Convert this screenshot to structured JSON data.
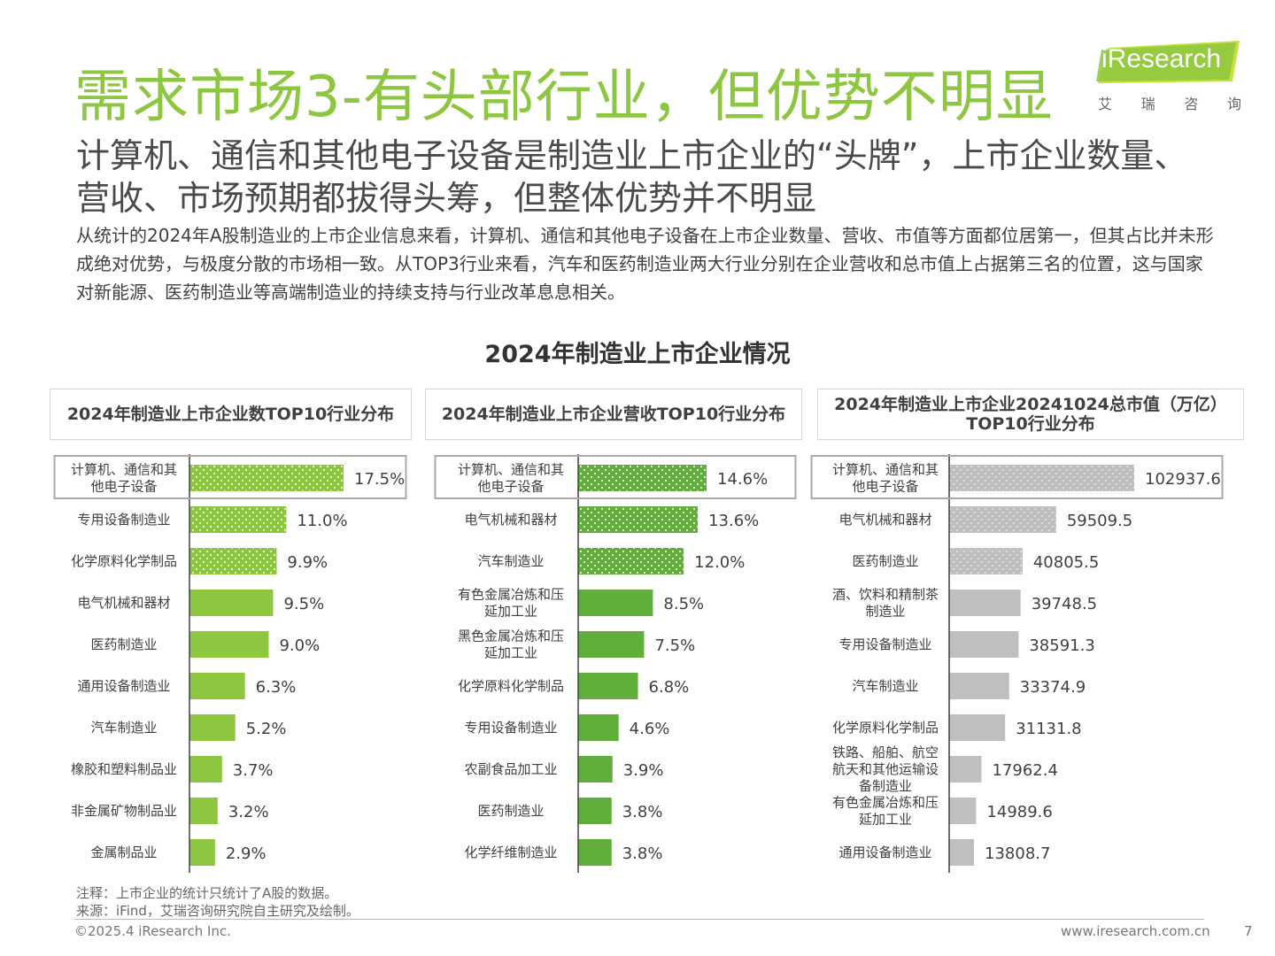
{
  "header": {
    "title": "需求市场3-有头部行业，但优势不明显",
    "subtitle": "计算机、通信和其他电子设备是制造业上市企业的“头牌”，上市企业数量、营收、市场预期都拔得头筹，但整体优势并不明显",
    "description": "从统计的2024年A股制造业的上市企业信息来看，计算机、通信和其他电子设备在上市企业数量、营收、市值等方面都位居第一，但其占比并未形成绝对优势，与极度分散的市场相一致。从TOP3行业来看，汽车和医药制造业两大行业分别在企业营收和总市值上占据第三名的位置，这与国家对新能源、医药制造业等高端制造业的持续支持与行业改革息息相关。"
  },
  "logo": {
    "brand": "iResearch",
    "brand_i": "i",
    "brand_rest": "Research",
    "cn_chars": [
      "艾",
      "瑞",
      "咨",
      "询"
    ]
  },
  "section_title": "2024年制造业上市企业情况",
  "colors": {
    "green_dark": "#62ae3b",
    "green_light": "#8dc63f",
    "gray": "#bfbfbf",
    "accent": "#8dc63f"
  },
  "chart_data": [
    {
      "type": "bar",
      "orientation": "horizontal",
      "title": "2024年制造业上市企业数TOP10行业分布",
      "categories": [
        "计算机、通信和其\n他电子设备",
        "专用设备制造业",
        "化学原料化学制品",
        "电气机械和器材",
        "医药制造业",
        "通用设备制造业",
        "汽车制造业",
        "橡胶和塑料制品业",
        "非金属矿物制品业",
        "金属制品业"
      ],
      "values": [
        17.5,
        11.0,
        9.9,
        9.5,
        9.0,
        6.3,
        5.2,
        3.7,
        3.2,
        2.9
      ],
      "labels": [
        "17.5%",
        "11.0%",
        "9.9%",
        "9.5%",
        "9.0%",
        "6.3%",
        "5.2%",
        "3.7%",
        "3.2%",
        "2.9%"
      ],
      "unit": "%",
      "xlim": [
        0,
        17.5
      ],
      "top3_pattern": "dotted",
      "highlight_first": true
    },
    {
      "type": "bar",
      "orientation": "horizontal",
      "title": "2024年制造业上市企业营收TOP10行业分布",
      "categories": [
        "计算机、通信和其\n他电子设备",
        "电气机械和器材",
        "汽车制造业",
        "有色金属冶炼和压\n延加工业",
        "黑色金属冶炼和压\n延加工业",
        "化学原料化学制品",
        "专用设备制造业",
        "农副食品加工业",
        "医药制造业",
        "化学纤维制造业"
      ],
      "values": [
        14.6,
        13.6,
        12.0,
        8.5,
        7.5,
        6.8,
        4.6,
        3.9,
        3.8,
        3.8
      ],
      "labels": [
        "14.6%",
        "13.6%",
        "12.0%",
        "8.5%",
        "7.5%",
        "6.8%",
        "4.6%",
        "3.9%",
        "3.8%",
        "3.8%"
      ],
      "unit": "%",
      "xlim": [
        0,
        14.6
      ],
      "top3_pattern": "dotted",
      "highlight_first": true
    },
    {
      "type": "bar",
      "orientation": "horizontal",
      "title": "2024年制造业上市企业20241024总市值（万亿）\nTOP10行业分布",
      "categories": [
        "计算机、通信和其\n他电子设备",
        "电气机械和器材",
        "医药制造业",
        "酒、饮料和精制茶\n制造业",
        "专用设备制造业",
        "汽车制造业",
        "化学原料化学制品",
        "铁路、船舶、航空\n航天和其他运输设\n备制造业",
        "有色金属冶炼和压\n延加工业",
        "通用设备制造业"
      ],
      "values": [
        102937.6,
        59509.5,
        40805.5,
        39748.5,
        38591.3,
        33374.9,
        31131.8,
        17962.4,
        14989.6,
        13808.7
      ],
      "labels": [
        "102937.6",
        "59509.5",
        "40805.5",
        "39748.5",
        "38591.3",
        "33374.9",
        "31131.8",
        "17962.4",
        "14989.6",
        "13808.7"
      ],
      "unit": "",
      "xlim": [
        0,
        102937.6
      ],
      "top3_pattern": "dotted",
      "highlight_first": true
    }
  ],
  "notes": {
    "note": "注释：上市企业的统计只统计了A股的数据。",
    "source": "来源：iFind，艾瑞咨询研究院自主研究及绘制。"
  },
  "footer": {
    "copyright": "©2025.4 iResearch Inc.",
    "website": "www.iresearch.com.cn",
    "page": "7"
  }
}
